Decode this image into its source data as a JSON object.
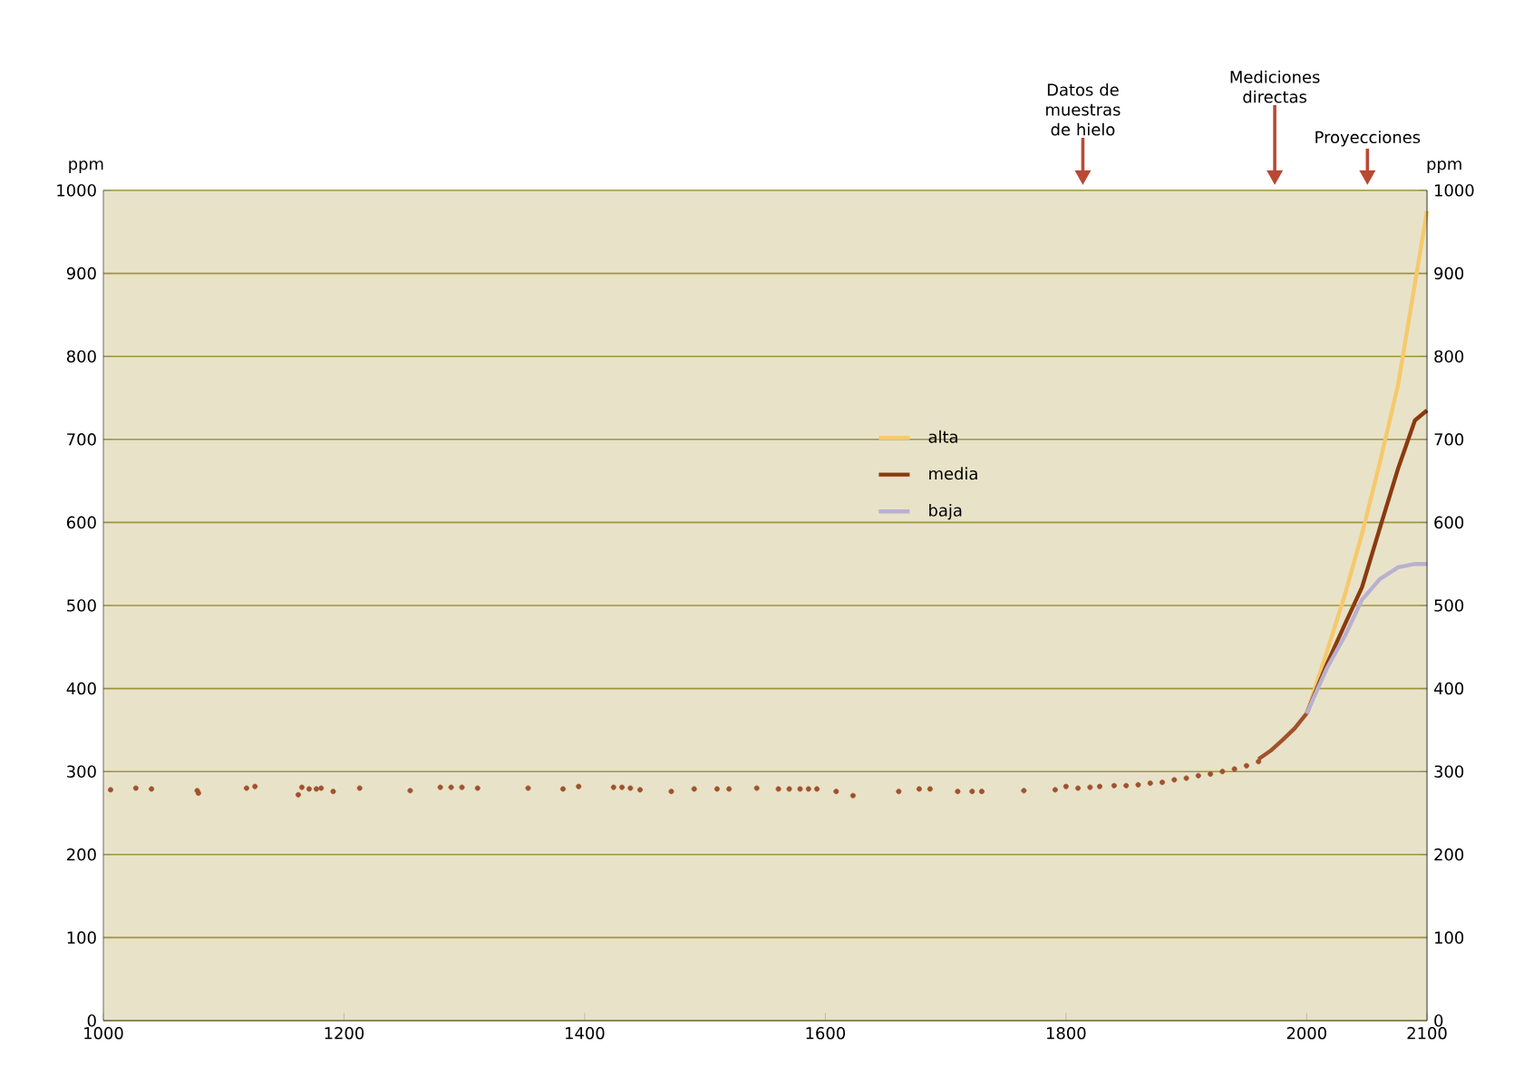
{
  "chart_data": {
    "type": "line",
    "xlabel": null,
    "ylabel": "ppm",
    "y2label": "ppm",
    "xlim": [
      1000,
      2100
    ],
    "xticks": [
      1000,
      1200,
      1400,
      1600,
      1800,
      2000,
      2100
    ],
    "ylim": [
      0,
      1000
    ],
    "yticks": [
      0,
      100,
      200,
      300,
      400,
      500,
      600,
      700,
      800,
      900,
      1000
    ],
    "y2lim": [
      0,
      1000
    ],
    "y2ticks": [
      0,
      100,
      200,
      300,
      400,
      500,
      600,
      700,
      800,
      900,
      1000
    ],
    "grid": "y",
    "legend": "right",
    "annotations": [
      "Datos de muestras de hielo",
      "Mediciones directas",
      "Proyecciones"
    ],
    "series": [
      {
        "type": "scatter",
        "marker": "circle",
        "color": "#a0522d",
        "x": [
          1006,
          1027,
          1040,
          1078,
          1079,
          1119,
          1126,
          1162,
          1165,
          1171,
          1177,
          1181,
          1191,
          1213,
          1255,
          1280,
          1289,
          1298,
          1311,
          1353,
          1382,
          1395,
          1424,
          1431,
          1438,
          1446,
          1472,
          1491,
          1510,
          1520,
          1543,
          1561,
          1570,
          1579,
          1586,
          1593,
          1609,
          1623,
          1661,
          1678,
          1687,
          1710,
          1722,
          1730,
          1765,
          1791,
          1800,
          1810,
          1820,
          1828,
          1840,
          1850,
          1860,
          1870,
          1880,
          1890,
          1900,
          1910,
          1920,
          1930,
          1940,
          1950,
          1960
        ],
        "values": [
          278,
          280,
          279,
          277,
          274,
          280,
          282,
          272,
          281,
          279,
          279,
          280,
          276,
          280,
          277,
          281,
          281,
          281,
          280,
          280,
          279,
          282,
          281,
          281,
          280,
          278,
          276,
          279,
          279,
          279,
          280,
          279,
          279,
          279,
          279,
          279,
          276,
          271,
          276,
          279,
          279,
          276,
          276,
          276,
          277,
          278,
          282,
          280,
          281,
          282,
          283,
          283,
          284,
          286,
          287,
          290,
          292,
          295,
          297,
          300,
          303,
          307,
          312
        ]
      },
      {
        "marker": "none",
        "color": "#a0522d",
        "x": [
          1960,
          1970,
          1980,
          1990,
          2000
        ],
        "values": [
          315,
          325,
          338,
          352,
          370
        ]
      },
      {
        "name": "alta",
        "marker": "none",
        "color": "#f5c96b",
        "x": [
          2000,
          2017,
          2032,
          2046,
          2061,
          2076,
          2090,
          2100
        ],
        "values": [
          370,
          445,
          514,
          586,
          673,
          766,
          888,
          975
        ]
      },
      {
        "name": "media",
        "marker": "none",
        "color": "#8b3a0f",
        "x": [
          2000,
          2017,
          2032,
          2046,
          2061,
          2076,
          2090,
          2100
        ],
        "values": [
          370,
          430,
          478,
          522,
          594,
          665,
          723,
          735
        ]
      },
      {
        "name": "baja",
        "marker": "none",
        "color": "#b9b0d0",
        "x": [
          2000,
          2017,
          2032,
          2046,
          2061,
          2076,
          2090,
          2100
        ],
        "values": [
          370,
          425,
          464,
          507,
          532,
          546,
          550,
          550
        ]
      }
    ]
  }
}
